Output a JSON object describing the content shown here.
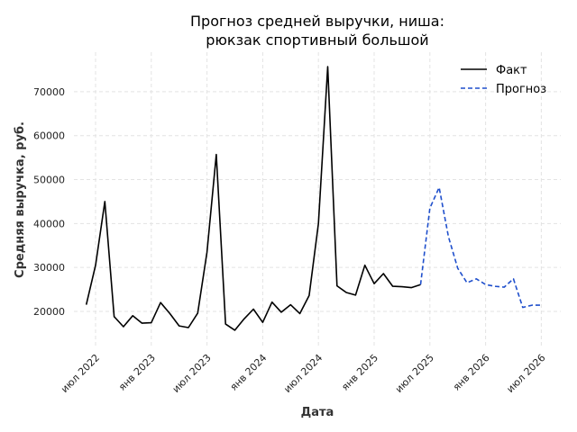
{
  "chart_data": {
    "type": "line",
    "title_line1": "Прогноз средней выручки, ниша:",
    "title_line2": "рюкзак спортивный большой",
    "xlabel": "Дата",
    "ylabel": "Средняя выручка, руб.",
    "x_ticks": [
      "июл 2022",
      "янв 2023",
      "июл 2023",
      "янв 2024",
      "июл 2024",
      "янв 2025",
      "июл 2025",
      "янв 2026",
      "июл 2026"
    ],
    "y_ticks": [
      20000,
      30000,
      40000,
      50000,
      60000,
      70000
    ],
    "ylim": [
      12000,
      79000
    ],
    "grid": true,
    "legend_position": "top-right",
    "series": [
      {
        "name": "Факт",
        "color": "#000000",
        "style": "solid",
        "x": [
          "2022-06",
          "2022-07",
          "2022-08",
          "2022-09",
          "2022-10",
          "2022-11",
          "2022-12",
          "2023-01",
          "2023-02",
          "2023-03",
          "2023-04",
          "2023-05",
          "2023-06",
          "2023-07",
          "2023-08",
          "2023-09",
          "2023-10",
          "2023-11",
          "2023-12",
          "2024-01",
          "2024-02",
          "2024-03",
          "2024-04",
          "2024-05",
          "2024-06",
          "2024-07",
          "2024-08",
          "2024-09",
          "2024-10",
          "2024-11",
          "2024-12",
          "2025-01",
          "2025-02",
          "2025-03",
          "2025-04",
          "2025-05",
          "2025-06"
        ],
        "values": [
          21500,
          30500,
          45000,
          18800,
          16500,
          19000,
          17300,
          17400,
          22000,
          19500,
          16700,
          16300,
          19600,
          33500,
          55700,
          17100,
          15700,
          18300,
          20500,
          17500,
          22100,
          19800,
          21500,
          19500,
          23600,
          40000,
          75700,
          25800,
          24300,
          23700,
          30500,
          26300,
          28600,
          25700,
          25600,
          25400,
          26100
        ]
      },
      {
        "name": "Прогноз",
        "color": "#1f4fcc",
        "style": "dashed",
        "x": [
          "2025-06",
          "2025-07",
          "2025-08",
          "2025-09",
          "2025-10",
          "2025-11",
          "2025-12",
          "2026-01",
          "2026-02",
          "2026-03",
          "2026-04",
          "2026-05",
          "2026-06",
          "2026-07"
        ],
        "values": [
          26100,
          43500,
          48200,
          37000,
          29800,
          26500,
          27400,
          26100,
          25700,
          25500,
          27400,
          20900,
          21400,
          21400
        ]
      }
    ]
  }
}
